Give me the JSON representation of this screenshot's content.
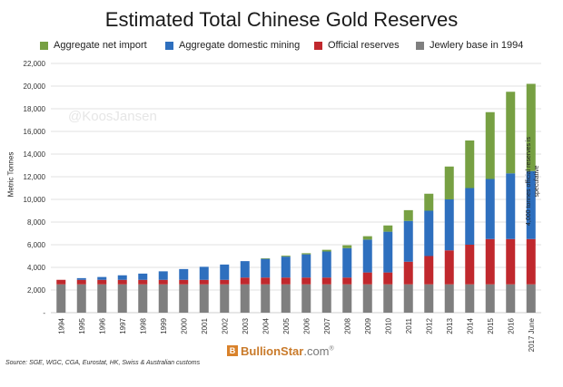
{
  "chart_data": {
    "type": "bar",
    "stacked": true,
    "title": "Estimated Total Chinese Gold Reserves",
    "ylabel": "Metric Tonnes",
    "xlabel": "",
    "ylim": [
      0,
      22000
    ],
    "yticks": [
      0,
      2000,
      4000,
      6000,
      8000,
      10000,
      12000,
      14000,
      16000,
      18000,
      20000,
      22000
    ],
    "ytick_labels": [
      "-",
      "2,000",
      "4,000",
      "6,000",
      "8,000",
      "10,000",
      "12,000",
      "14,000",
      "16,000",
      "18,000",
      "20,000",
      "22,000"
    ],
    "categories": [
      "1994",
      "1995",
      "1996",
      "1997",
      "1998",
      "1999",
      "2000",
      "2001",
      "2002",
      "2003",
      "2004",
      "2005",
      "2006",
      "2007",
      "2008",
      "2009",
      "2010",
      "2011",
      "2012",
      "2013",
      "2014",
      "2015",
      "2016",
      "2017 June"
    ],
    "series": [
      {
        "name": "Jewlery base in 1994",
        "color": "#7f7f7f",
        "values": [
          2500,
          2500,
          2500,
          2500,
          2500,
          2500,
          2500,
          2500,
          2500,
          2500,
          2500,
          2500,
          2500,
          2500,
          2500,
          2500,
          2500,
          2500,
          2500,
          2500,
          2500,
          2500,
          2500,
          2500
        ]
      },
      {
        "name": "Official reserves",
        "color": "#c0282d",
        "values": [
          400,
          400,
          400,
          400,
          400,
          400,
          400,
          400,
          400,
          600,
          600,
          600,
          600,
          600,
          600,
          1050,
          1050,
          2000,
          2500,
          3000,
          3500,
          4000,
          4000,
          4000
        ]
      },
      {
        "name": "Aggregate domestic mining",
        "color": "#2e6fbe",
        "values": [
          0,
          150,
          250,
          400,
          550,
          750,
          950,
          1150,
          1350,
          1450,
          1650,
          1850,
          2050,
          2300,
          2600,
          2900,
          3600,
          3600,
          4000,
          4500,
          5000,
          5300,
          5800,
          6000
        ]
      },
      {
        "name": "Aggregate net import",
        "color": "#77a043",
        "values": [
          0,
          0,
          0,
          0,
          0,
          0,
          0,
          0,
          0,
          0,
          50,
          80,
          100,
          150,
          250,
          300,
          550,
          950,
          1500,
          2900,
          4200,
          5900,
          7200,
          7700
        ]
      }
    ],
    "legend_order": [
      "Aggregate net import",
      "Aggregate domestic mining",
      "Official reserves",
      "Jewlery base in 1994"
    ],
    "annotations": [
      "4,000 tonnes official reserves is speculative"
    ],
    "watermark": "@KoosJansen"
  },
  "source_note": "Source: SGE, WGC, CGA, Eurostat, HK, Swiss & Australian customs",
  "brand": {
    "logo_glyph": "B",
    "name_main": "BullionStar",
    "name_domain": ".com",
    "reg": "®"
  },
  "colors": {
    "grid": "#d9d9d9",
    "axis": "#bfbfbf"
  }
}
